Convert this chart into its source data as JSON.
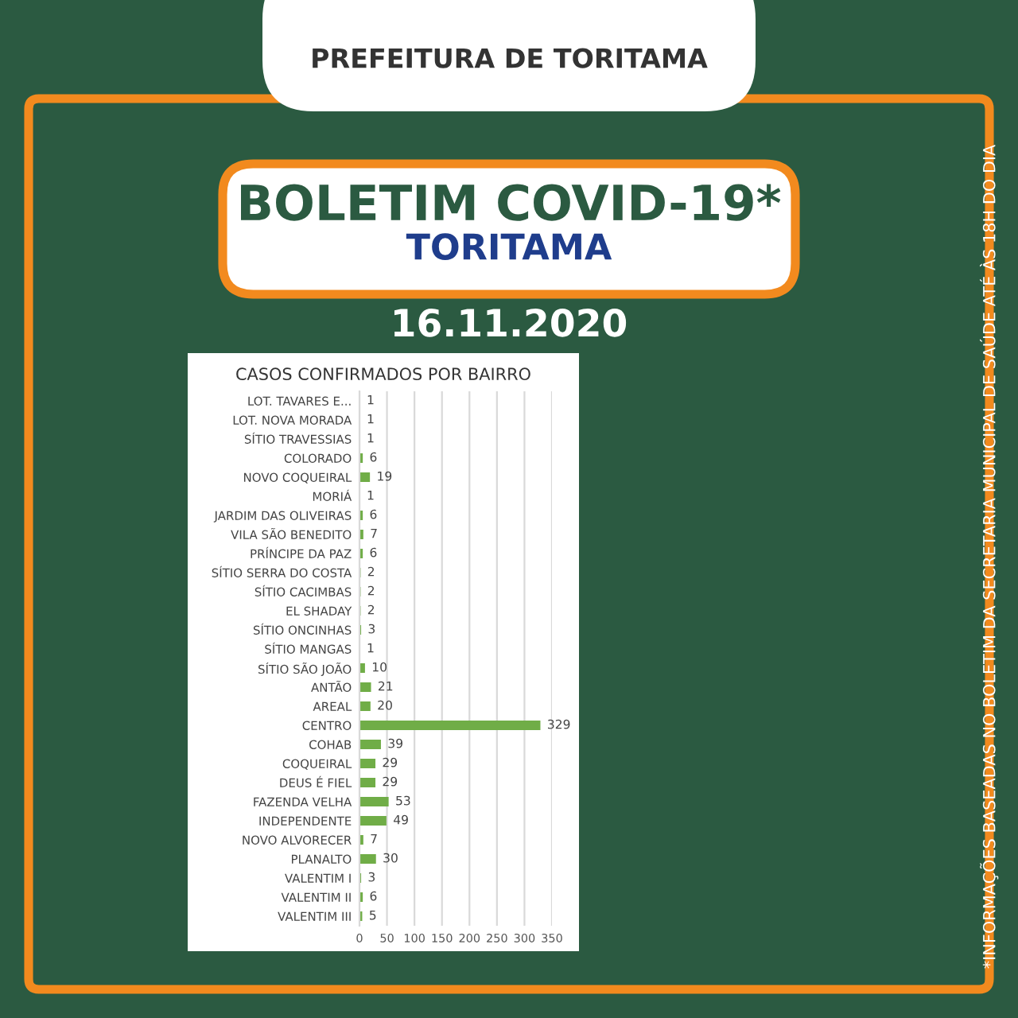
{
  "chart_data": {
    "type": "bar",
    "orientation": "horizontal",
    "title": "CASOS CONFIRMADOS POR BAIRRO",
    "categories": [
      "LOT. TAVARES E...",
      "LOT. NOVA MORADA",
      "SÍTIO TRAVESSIAS",
      "COLORADO",
      "NOVO COQUEIRAL",
      "MORIÁ",
      "JARDIM DAS OLIVEIRAS",
      "VILA SÃO BENEDITO",
      "PRÍNCIPE DA PAZ",
      "SÍTIO SERRA DO COSTA",
      "SÍTIO CACIMBAS",
      "EL SHADAY",
      "SÍTIO ONCINHAS",
      "SÍTIO MANGAS",
      "SÍTIO SÃO JOÃO",
      "ANTÃO",
      "AREAL",
      "CENTRO",
      "COHAB",
      "COQUEIRAL",
      "DEUS É FIEL",
      "FAZENDA VELHA",
      "INDEPENDENTE",
      "NOVO ALVORECER",
      "PLANALTO",
      "VALENTIM I",
      "VALENTIM II",
      "VALENTIM III"
    ],
    "values": [
      1,
      1,
      1,
      6,
      19,
      1,
      6,
      7,
      6,
      2,
      2,
      2,
      3,
      1,
      10,
      21,
      20,
      329,
      39,
      29,
      29,
      53,
      49,
      7,
      30,
      3,
      6,
      5
    ],
    "color": "#70ad47",
    "data_labels": true,
    "xlim": [
      0,
      350
    ],
    "xticks": [
      0,
      50,
      100,
      150,
      200,
      250,
      300,
      350
    ],
    "grid": "x",
    "annotations": [
      "PREFEITURA DE TORITAMA",
      "BOLETIM COVID-19*",
      "TORITAMA",
      "16.11.2020",
      "*INFORMAÇÕES BASEADAS NO BOLETIM DA SECRETARIA MUNICIPAL DE SAÚDE ATÉ ÀS 18H DO DIA"
    ]
  }
}
